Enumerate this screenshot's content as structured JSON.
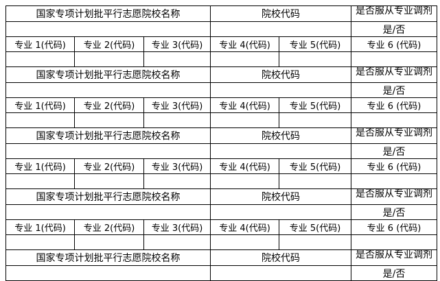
{
  "labels": {
    "school_name": "国家专项计划批平行志愿院校名称",
    "school_code": "院校代码",
    "accept_adjustment": "是否服从专业调剂",
    "yes_no": "是/否",
    "majors": [
      "专业 1(代码)",
      "专业 2(代码)",
      "专业 3(代码)",
      "专业 4(代码)",
      "专业 5(代码)",
      "专业 6 (代码)"
    ]
  },
  "blocks": [
    {
      "has_majors": true
    },
    {
      "has_majors": true
    },
    {
      "has_majors": true
    },
    {
      "has_majors": true
    },
    {
      "has_majors": false
    }
  ]
}
